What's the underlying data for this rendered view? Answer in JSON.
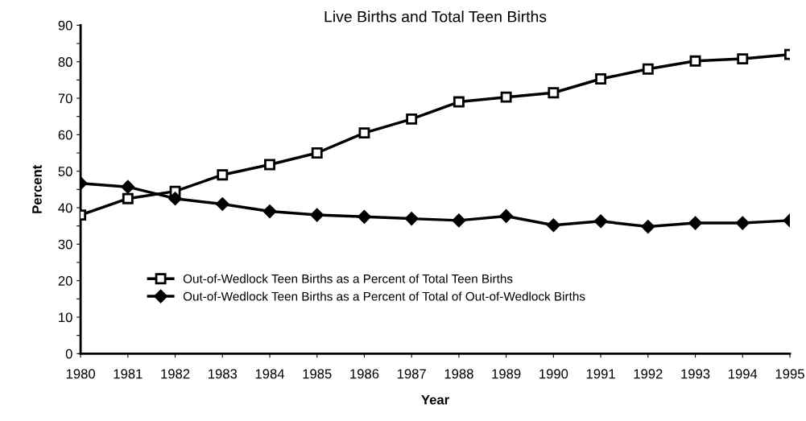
{
  "chart_data": {
    "type": "line",
    "title": "Live Births and Total Teen Births",
    "xlabel": "Year",
    "ylabel": "Percent",
    "x": [
      1980,
      1981,
      1982,
      1983,
      1984,
      1985,
      1986,
      1987,
      1988,
      1989,
      1990,
      1991,
      1992,
      1993,
      1994,
      1995
    ],
    "series": [
      {
        "name": "Out-of-Wedlock Teen Births as a Percent of Total Teen Births",
        "color": "#000000",
        "marker": "square",
        "values": [
          38,
          42.5,
          44.5,
          49,
          51.8,
          55,
          60.5,
          64.3,
          69,
          70.3,
          71.5,
          75.3,
          78,
          80.2,
          80.8,
          82
        ]
      },
      {
        "name": "Out-of-Wedlock Teen Births as a Percent of Total of Out-of-Wedlock Births",
        "color": "#000000",
        "marker": "diamond",
        "values": [
          46.7,
          45.7,
          42.5,
          41,
          39,
          38,
          37.5,
          37,
          36.5,
          37.7,
          35.2,
          36.3,
          34.8,
          35.8,
          35.8,
          36.5
        ]
      }
    ],
    "xlim": [
      1980,
      1995
    ],
    "xticks": [
      1980,
      1981,
      1982,
      1983,
      1984,
      1985,
      1986,
      1987,
      1988,
      1989,
      1990,
      1991,
      1992,
      1993,
      1994,
      1995
    ],
    "ylim": [
      0,
      90
    ],
    "yticks": [
      0,
      {
        "value": 5,
        "label": null
      },
      10,
      {
        "value": 15,
        "label": null
      },
      20,
      {
        "value": 25,
        "label": null
      },
      30,
      {
        "value": 35,
        "label": null
      },
      40,
      {
        "value": 45,
        "label": null
      },
      50,
      {
        "value": 55,
        "label": null
      },
      60,
      {
        "value": 65,
        "label": null
      },
      70,
      {
        "value": 75,
        "label": null
      },
      80,
      {
        "value": 85,
        "label": null
      },
      90
    ],
    "grid": false,
    "legend": "lower left",
    "line_style": "solid"
  }
}
